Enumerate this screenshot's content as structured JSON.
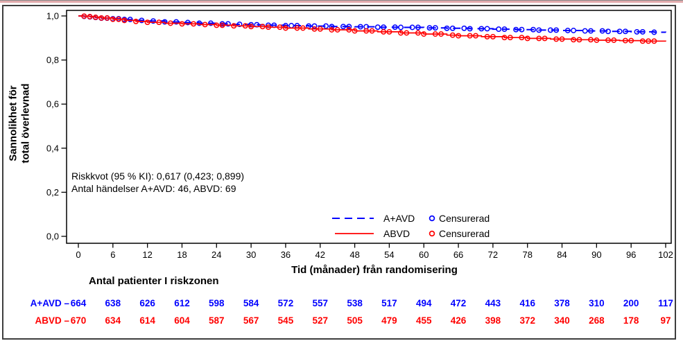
{
  "chart_data": {
    "type": "line",
    "subtype": "kaplan-meier-survival",
    "title": "",
    "xlabel": "Tid (månader) från randomisering",
    "ylabel": "Sannolikhet för total överlevnad",
    "ylabel_lines": [
      "Sannolikhet  för",
      "total överlevnad"
    ],
    "xlim": [
      0,
      102
    ],
    "ylim": [
      0.0,
      1.0
    ],
    "x_ticks": [
      0,
      6,
      12,
      18,
      24,
      30,
      36,
      42,
      48,
      54,
      60,
      66,
      72,
      78,
      84,
      90,
      96,
      102
    ],
    "y_ticks": [
      {
        "value": 1.0,
        "label": "1,0"
      },
      {
        "value": 0.8,
        "label": "0,8"
      },
      {
        "value": 0.6,
        "label": "0,6"
      },
      {
        "value": 0.4,
        "label": "0,4"
      },
      {
        "value": 0.2,
        "label": "0,2"
      },
      {
        "value": 0.0,
        "label": "0,0"
      }
    ],
    "grid": false,
    "annotation": [
      "Riskkvot (95 % KI): 0,617 (0,423; 0,899)",
      "Antal händelser A+AVD: 46, ABVD: 69"
    ],
    "legend": {
      "position": "bottom-center-inside",
      "censored_label": "Censurerad"
    },
    "series": [
      {
        "name": "A+AVD",
        "color": "#0000ff",
        "line_style": "dashed",
        "points": [
          [
            0,
            1.0
          ],
          [
            1,
            0.998
          ],
          [
            2,
            0.996
          ],
          [
            3,
            0.993
          ],
          [
            4,
            0.99
          ],
          [
            6,
            0.987
          ],
          [
            8,
            0.984
          ],
          [
            10,
            0.98
          ],
          [
            12,
            0.977
          ],
          [
            15,
            0.973
          ],
          [
            18,
            0.97
          ],
          [
            21,
            0.967
          ],
          [
            24,
            0.964
          ],
          [
            27,
            0.962
          ],
          [
            30,
            0.96
          ],
          [
            33,
            0.958
          ],
          [
            36,
            0.956
          ],
          [
            40,
            0.954
          ],
          [
            44,
            0.952
          ],
          [
            48,
            0.951
          ],
          [
            52,
            0.949
          ],
          [
            56,
            0.948
          ],
          [
            60,
            0.946
          ],
          [
            64,
            0.944
          ],
          [
            68,
            0.942
          ],
          [
            72,
            0.94
          ],
          [
            76,
            0.938
          ],
          [
            80,
            0.936
          ],
          [
            84,
            0.934
          ],
          [
            88,
            0.932
          ],
          [
            92,
            0.93
          ],
          [
            96,
            0.928
          ],
          [
            100,
            0.926
          ],
          [
            102,
            0.925
          ]
        ],
        "censor_months": [
          1,
          2,
          3,
          4,
          5,
          6,
          7,
          8,
          9,
          11,
          13,
          15,
          17,
          19,
          21,
          23,
          25,
          26,
          28,
          30,
          31,
          33,
          34,
          36,
          37,
          38,
          40,
          41,
          43,
          44,
          46,
          47,
          49,
          50,
          52,
          53,
          55,
          56,
          58,
          59,
          61,
          62,
          64,
          65,
          67,
          68,
          70,
          71,
          73,
          74,
          76,
          77,
          79,
          80,
          82,
          83,
          85,
          86,
          88,
          89,
          91,
          92,
          94,
          95,
          97,
          98,
          100
        ]
      },
      {
        "name": "ABVD",
        "color": "#ff0000",
        "line_style": "solid",
        "points": [
          [
            0,
            1.0
          ],
          [
            1,
            0.999
          ],
          [
            2,
            0.997
          ],
          [
            3,
            0.994
          ],
          [
            4,
            0.991
          ],
          [
            6,
            0.985
          ],
          [
            8,
            0.98
          ],
          [
            10,
            0.975
          ],
          [
            12,
            0.971
          ],
          [
            15,
            0.967
          ],
          [
            18,
            0.964
          ],
          [
            21,
            0.961
          ],
          [
            24,
            0.958
          ],
          [
            27,
            0.955
          ],
          [
            30,
            0.952
          ],
          [
            33,
            0.949
          ],
          [
            36,
            0.945
          ],
          [
            40,
            0.941
          ],
          [
            44,
            0.937
          ],
          [
            48,
            0.932
          ],
          [
            52,
            0.928
          ],
          [
            56,
            0.923
          ],
          [
            60,
            0.918
          ],
          [
            64,
            0.913
          ],
          [
            66,
            0.91
          ],
          [
            70,
            0.906
          ],
          [
            74,
            0.902
          ],
          [
            78,
            0.898
          ],
          [
            82,
            0.895
          ],
          [
            86,
            0.892
          ],
          [
            90,
            0.89
          ],
          [
            94,
            0.888
          ],
          [
            98,
            0.886
          ],
          [
            102,
            0.884
          ]
        ],
        "censor_months": [
          1,
          2,
          3,
          4,
          5,
          6,
          7,
          8,
          10,
          12,
          14,
          16,
          18,
          20,
          22,
          24,
          25,
          27,
          29,
          30,
          32,
          33,
          35,
          36,
          38,
          39,
          41,
          42,
          44,
          45,
          47,
          48,
          50,
          51,
          53,
          54,
          56,
          57,
          59,
          60,
          62,
          63,
          65,
          66,
          68,
          69,
          71,
          72,
          74,
          75,
          77,
          78,
          80,
          81,
          83,
          84,
          86,
          87,
          89,
          90,
          92,
          93,
          95,
          96,
          98,
          99,
          100
        ]
      }
    ]
  },
  "risk_table": {
    "title": "Antal patienter I riskzonen",
    "rows": [
      {
        "label": "A+AVD",
        "dash": "–",
        "color": "#0000ff",
        "values": [
          664,
          638,
          626,
          612,
          598,
          584,
          572,
          557,
          538,
          517,
          494,
          472,
          443,
          416,
          378,
          310,
          200,
          117
        ]
      },
      {
        "label": "ABVD",
        "dash": "–",
        "color": "#ff0000",
        "values": [
          670,
          634,
          614,
          604,
          587,
          567,
          545,
          527,
          505,
          479,
          455,
          426,
          398,
          372,
          340,
          268,
          178,
          97
        ]
      }
    ]
  },
  "frame": {
    "top_line_color": "#e2abad",
    "border_color": "#3d3d3d"
  }
}
